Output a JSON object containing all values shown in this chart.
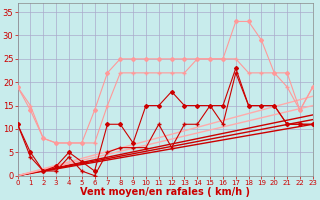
{
  "background_color": "#c8ecec",
  "grid_color": "#aaaacc",
  "xlabel": "Vent moyen/en rafales ( km/h )",
  "xlabel_color": "#cc0000",
  "xlabel_fontsize": 7,
  "tick_color": "#cc0000",
  "ytick_fontsize": 6,
  "xtick_fontsize": 5,
  "ylim": [
    0,
    37
  ],
  "xlim": [
    0,
    23
  ],
  "yticks": [
    0,
    5,
    10,
    15,
    20,
    25,
    30,
    35
  ],
  "xticks": [
    0,
    1,
    2,
    3,
    4,
    5,
    6,
    7,
    8,
    9,
    10,
    11,
    12,
    13,
    14,
    15,
    16,
    17,
    18,
    19,
    20,
    21,
    22,
    23
  ],
  "series": [
    {
      "x": [
        0,
        1,
        2,
        3,
        4,
        5,
        6,
        7,
        8,
        9,
        10,
        11,
        12,
        13,
        14,
        15,
        16,
        17,
        18,
        19,
        20,
        21,
        22,
        23
      ],
      "y": [
        11,
        4,
        1,
        1,
        4,
        1,
        0,
        5,
        6,
        6,
        6,
        11,
        6,
        11,
        11,
        15,
        11,
        22,
        15,
        15,
        15,
        11,
        11,
        11
      ],
      "color": "#cc0000",
      "lw": 0.8,
      "marker": "+",
      "ms": 3,
      "zorder": 4
    },
    {
      "x": [
        0,
        1,
        2,
        3,
        4,
        5,
        6,
        7,
        8,
        9,
        10,
        11,
        12,
        13,
        14,
        15,
        16,
        17,
        18,
        19,
        20,
        21,
        22,
        23
      ],
      "y": [
        11,
        5,
        1,
        2,
        5,
        3,
        1,
        11,
        11,
        7,
        15,
        15,
        18,
        15,
        15,
        15,
        15,
        23,
        15,
        15,
        15,
        11,
        11,
        11
      ],
      "color": "#cc0000",
      "lw": 0.8,
      "marker": "D",
      "ms": 2,
      "zorder": 4
    },
    {
      "x": [
        0,
        1,
        2,
        3,
        4,
        5,
        6,
        7,
        8,
        9,
        10,
        11,
        12,
        13,
        14,
        15,
        16,
        17,
        18,
        19,
        20,
        21,
        22,
        23
      ],
      "y": [
        19,
        15,
        8,
        7,
        7,
        7,
        7,
        15,
        22,
        22,
        22,
        22,
        22,
        22,
        25,
        25,
        25,
        25,
        22,
        22,
        22,
        19,
        14,
        19
      ],
      "color": "#ff9999",
      "lw": 0.8,
      "marker": "+",
      "ms": 3,
      "zorder": 3
    },
    {
      "x": [
        0,
        1,
        2,
        3,
        4,
        5,
        6,
        7,
        8,
        9,
        10,
        11,
        12,
        13,
        14,
        15,
        16,
        17,
        18,
        19,
        20,
        21,
        22,
        23
      ],
      "y": [
        19,
        14,
        8,
        7,
        7,
        7,
        14,
        22,
        25,
        25,
        25,
        25,
        25,
        25,
        25,
        25,
        25,
        33,
        33,
        29,
        22,
        22,
        14,
        19
      ],
      "color": "#ff9999",
      "lw": 0.8,
      "marker": "D",
      "ms": 2,
      "zorder": 3
    },
    {
      "x": [
        0,
        23
      ],
      "y": [
        0,
        11
      ],
      "color": "#cc0000",
      "lw": 1.0,
      "marker": null,
      "ms": 0,
      "zorder": 2
    },
    {
      "x": [
        0,
        23
      ],
      "y": [
        0,
        12
      ],
      "color": "#cc0000",
      "lw": 1.0,
      "marker": null,
      "ms": 0,
      "zorder": 2
    },
    {
      "x": [
        0,
        23
      ],
      "y": [
        0,
        13
      ],
      "color": "#cc0000",
      "lw": 1.0,
      "marker": null,
      "ms": 0,
      "zorder": 2
    },
    {
      "x": [
        0,
        23
      ],
      "y": [
        0,
        15
      ],
      "color": "#ffaaaa",
      "lw": 1.0,
      "marker": null,
      "ms": 0,
      "zorder": 2
    },
    {
      "x": [
        0,
        23
      ],
      "y": [
        0,
        17
      ],
      "color": "#ffaaaa",
      "lw": 1.0,
      "marker": null,
      "ms": 0,
      "zorder": 2
    }
  ]
}
